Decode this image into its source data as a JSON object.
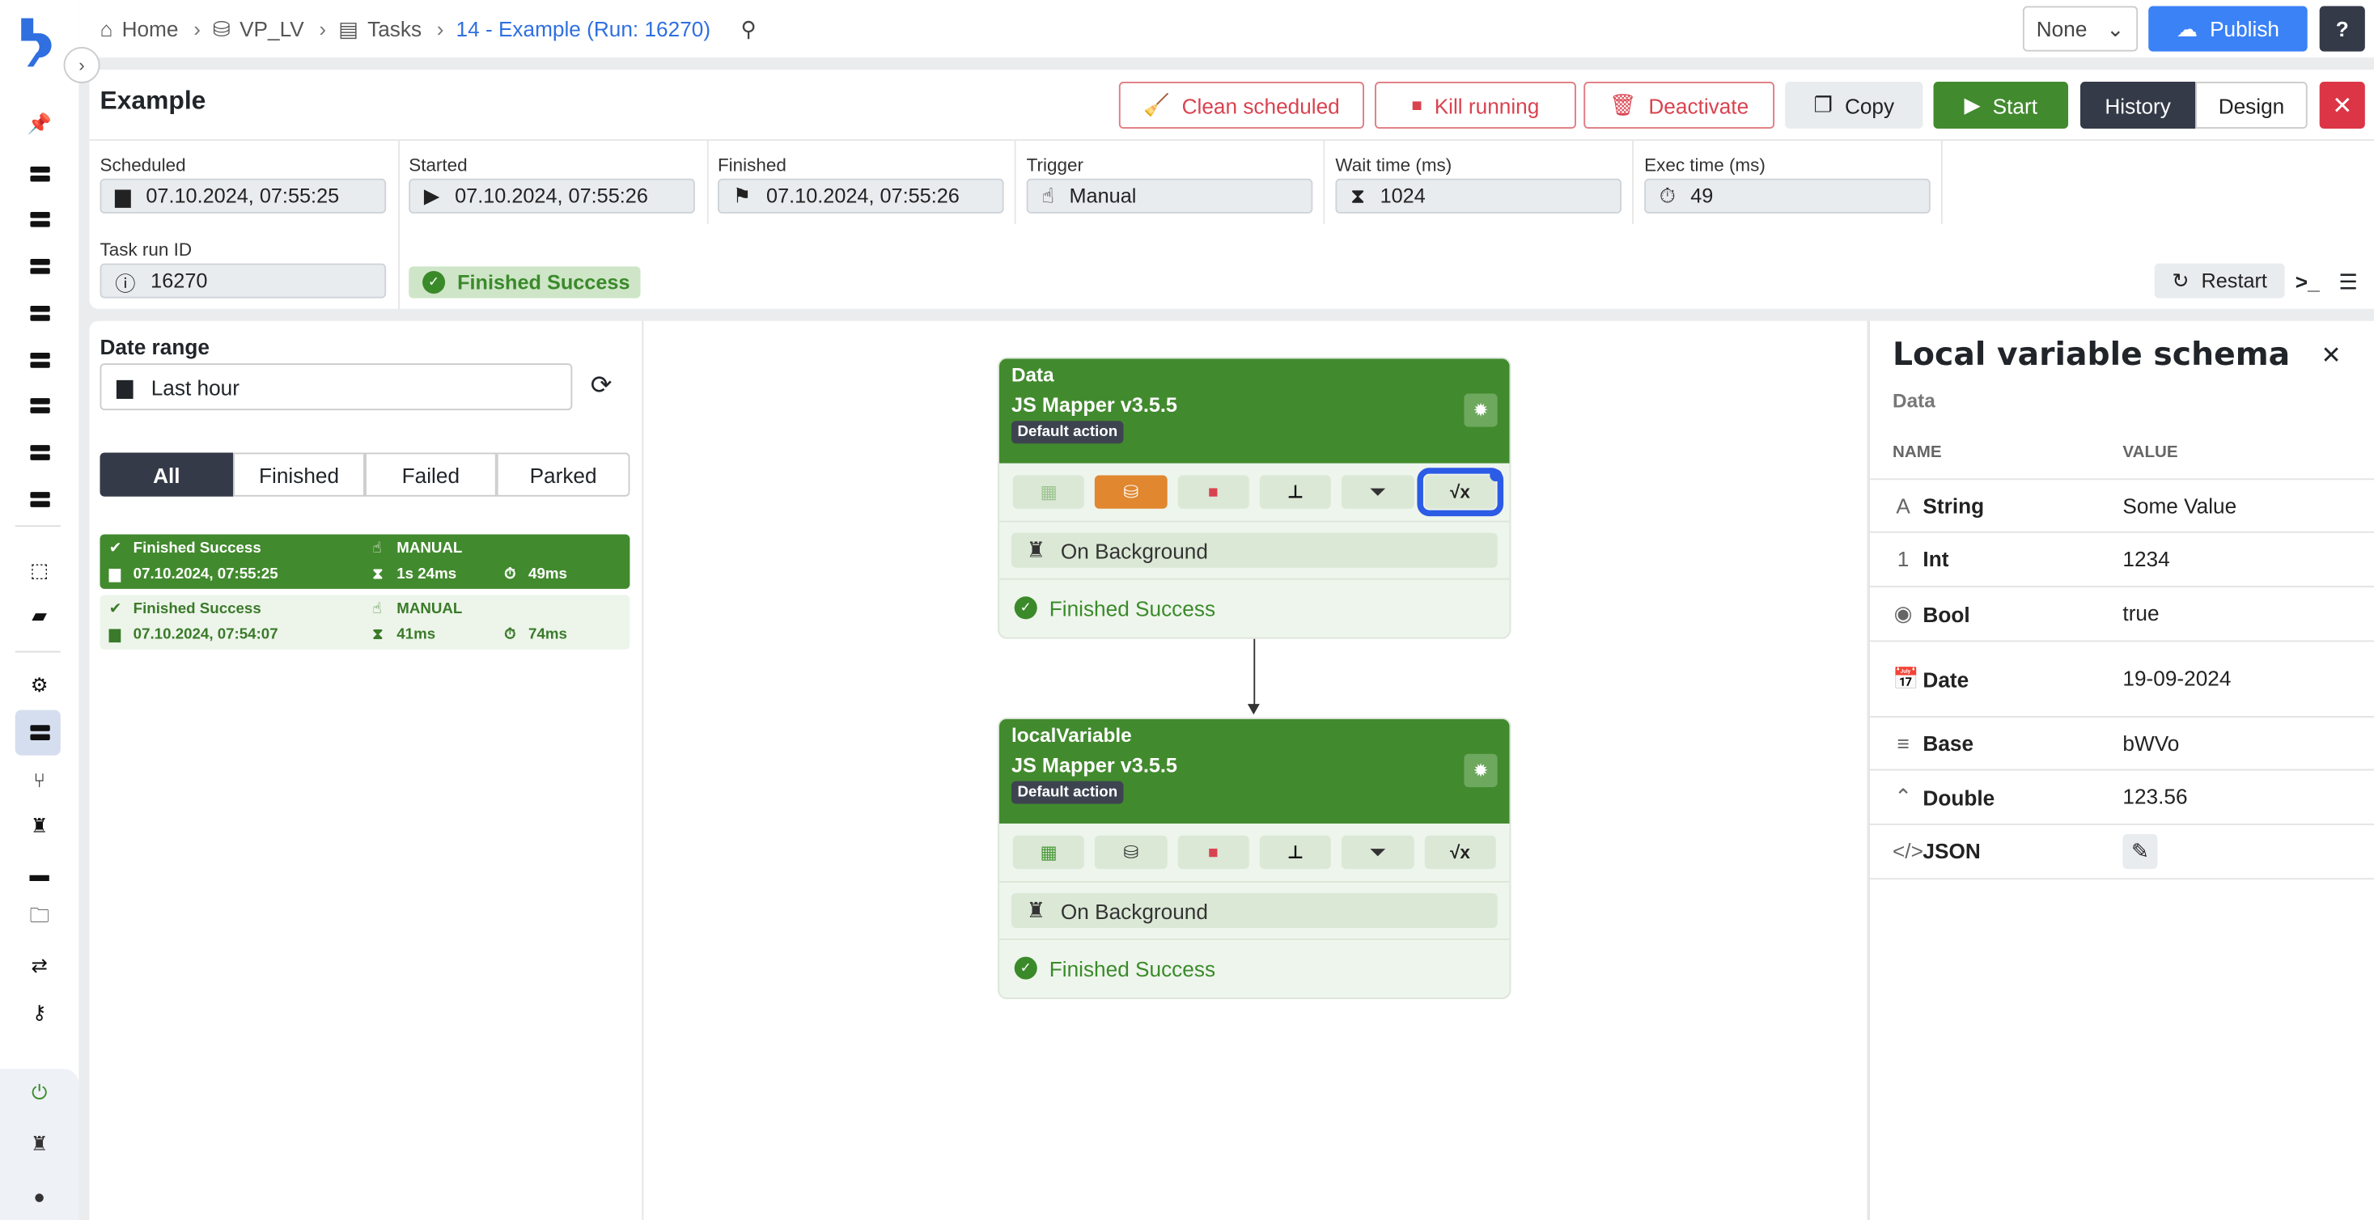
{
  "breadcrumb": [
    {
      "label": "Home",
      "icon": "home-icon"
    },
    {
      "label": "VP_LV",
      "icon": "database-icon"
    },
    {
      "label": "Tasks",
      "icon": "server-icon"
    },
    {
      "label": "14 - Example (Run: 16270)"
    }
  ],
  "topbar": {
    "select_value": "None",
    "publish_label": "Publish"
  },
  "task": {
    "title": "Example",
    "actions": {
      "clean": "Clean scheduled",
      "kill": "Kill running",
      "deactivate": "Deactivate",
      "copy": "Copy",
      "start": "Start",
      "history": "History",
      "design": "Design"
    },
    "fields": {
      "scheduled": {
        "label": "Scheduled",
        "value": "07.10.2024, 07:55:25"
      },
      "started": {
        "label": "Started",
        "value": "07.10.2024, 07:55:26"
      },
      "finished": {
        "label": "Finished",
        "value": "07.10.2024, 07:55:26"
      },
      "trigger": {
        "label": "Trigger",
        "value": "Manual"
      },
      "wait": {
        "label": "Wait time (ms)",
        "value": "1024"
      },
      "exec": {
        "label": "Exec time (ms)",
        "value": "49"
      },
      "run_id": {
        "label": "Task run ID",
        "value": "16270"
      }
    },
    "status": "Finished Success",
    "restart_label": "Restart"
  },
  "history": {
    "date_range_label": "Date range",
    "date_range_value": "Last hour",
    "filters": [
      "All",
      "Finished",
      "Failed",
      "Parked"
    ],
    "active_filter": "All",
    "runs": [
      {
        "status": "Finished Success",
        "trigger": "MANUAL",
        "date": "07.10.2024, 07:55:25",
        "wait": "1s 24ms",
        "exec": "49ms",
        "selected": true
      },
      {
        "status": "Finished Success",
        "trigger": "MANUAL",
        "date": "07.10.2024, 07:54:07",
        "wait": "41ms",
        "exec": "74ms",
        "selected": false
      }
    ]
  },
  "nodes": [
    {
      "title": "Data",
      "subtitle": "JS Mapper v3.5.5",
      "badge": "Default action",
      "mode": "On Background",
      "status": "Finished Success"
    },
    {
      "title": "localVariable",
      "subtitle": "JS Mapper v3.5.5",
      "badge": "Default action",
      "mode": "On Background",
      "status": "Finished Success"
    }
  ],
  "schema": {
    "title": "Local variable schema",
    "subtitle": "Data",
    "col_name": "NAME",
    "col_value": "VALUE",
    "rows": [
      {
        "icon": "A",
        "name": "String",
        "value": "Some Value"
      },
      {
        "icon": "1",
        "name": "Int",
        "value": "1234"
      },
      {
        "icon": "◉",
        "name": "Bool",
        "value": "true"
      },
      {
        "icon": "📅",
        "name": "Date",
        "value": "19-09-2024"
      },
      {
        "icon": "≡",
        "name": "Base",
        "value": "bWVo"
      },
      {
        "icon": "⌃",
        "name": "Double",
        "value": "123.56"
      },
      {
        "icon": "</>",
        "name": "JSON",
        "value": ""
      }
    ]
  },
  "colors": {
    "green": "#428a2e",
    "blue": "#3b82f6",
    "red": "#dc3545",
    "orange": "#e0872f",
    "dark": "#343a48"
  }
}
